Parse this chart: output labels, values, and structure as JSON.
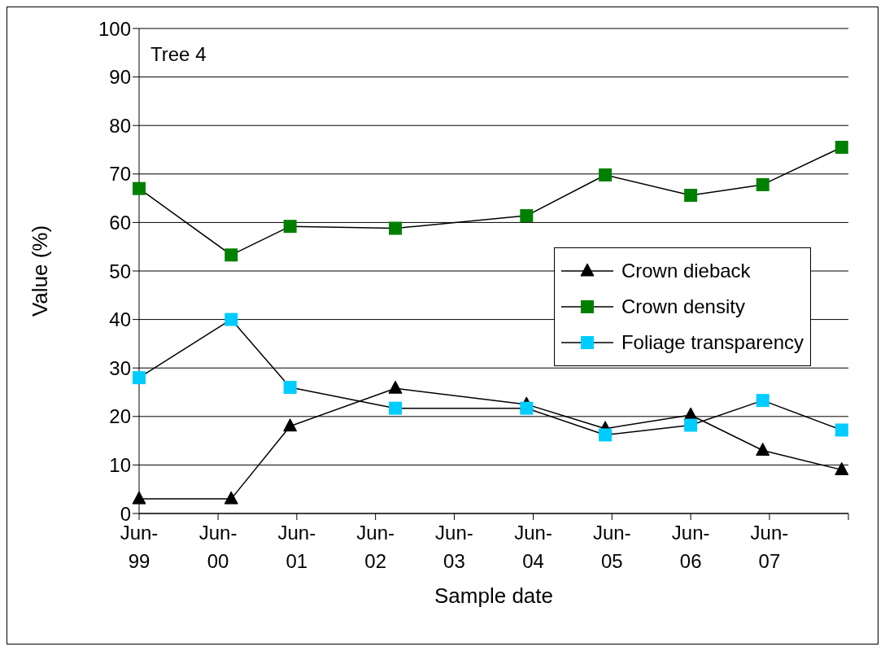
{
  "chart_data": {
    "type": "line",
    "xlabel": "Sample date",
    "ylabel": "Value (%)",
    "annotations": [
      "Tree 4"
    ],
    "x": [
      "1999-06",
      "2000-08",
      "2001-05",
      "2002-09",
      "2004-05",
      "2005-05",
      "2006-06",
      "2007-05",
      "2008-05"
    ],
    "series": [
      {
        "name": "Crown dieback",
        "color": "#000000",
        "marker": "triangle",
        "values": [
          3,
          3,
          18,
          25.8,
          22.5,
          17.5,
          20.3,
          13,
          9
        ]
      },
      {
        "name": "Crown density",
        "color": "#008000",
        "marker": "square",
        "values": [
          67,
          53.3,
          59.2,
          58.8,
          61.4,
          69.8,
          65.6,
          67.8,
          75.5
        ]
      },
      {
        "name": "Foliage transparency",
        "color": "#00ccff",
        "marker": "square",
        "values": [
          28,
          40,
          26,
          21.7,
          21.7,
          16.2,
          18.2,
          23.3,
          17.2
        ]
      }
    ],
    "xlim": [
      "1999-06",
      "2008-06"
    ],
    "xticks": [
      {
        "value": "1999-06",
        "label": "Jun-99"
      },
      {
        "value": "2000-06",
        "label": "Jun-00"
      },
      {
        "value": "2001-06",
        "label": "Jun-01"
      },
      {
        "value": "2002-06",
        "label": "Jun-02"
      },
      {
        "value": "2003-06",
        "label": "Jun-03"
      },
      {
        "value": "2004-06",
        "label": "Jun-04"
      },
      {
        "value": "2005-06",
        "label": "Jun-05"
      },
      {
        "value": "2006-06",
        "label": "Jun-06"
      },
      {
        "value": "2007-06",
        "label": "Jun-07"
      },
      {
        "value": "2008-06",
        "label": null
      }
    ],
    "ylim": [
      0,
      100
    ],
    "yticks": [
      0,
      10,
      20,
      30,
      40,
      50,
      60,
      70,
      80,
      90,
      100
    ],
    "grid": "y",
    "legend": "right",
    "line_style": "solid"
  }
}
